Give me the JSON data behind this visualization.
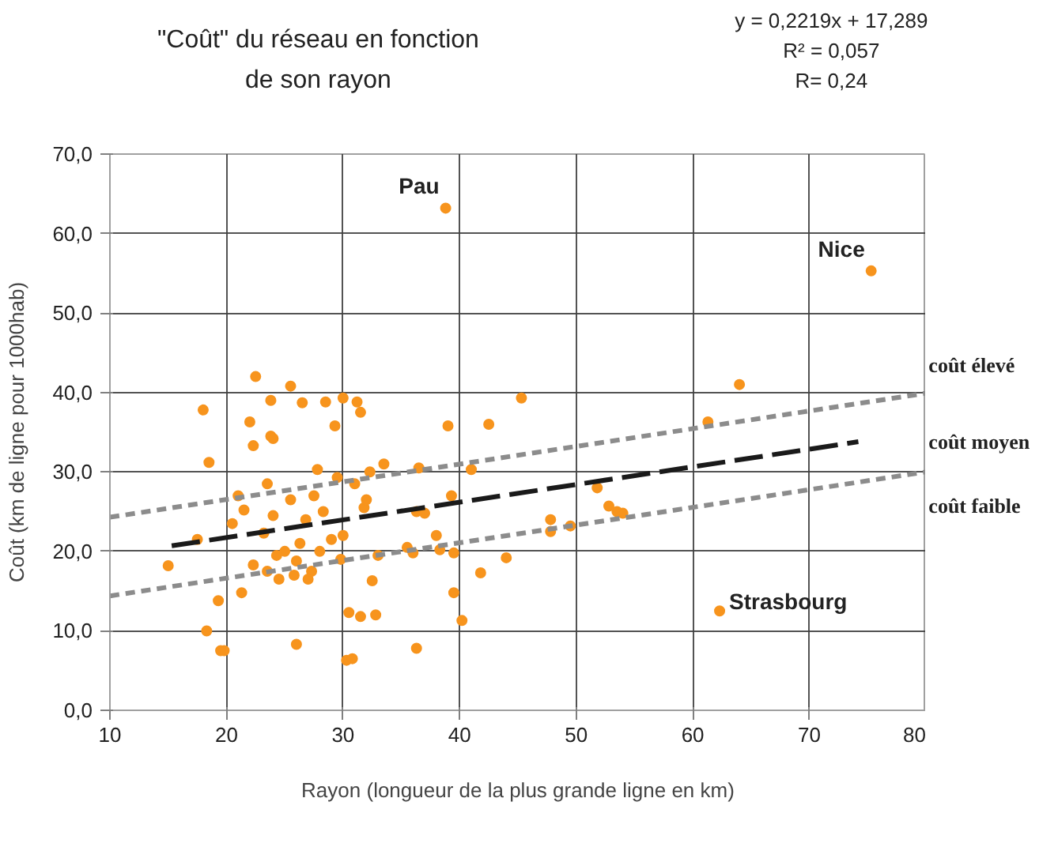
{
  "chart_data": {
    "type": "scatter",
    "title": "\"Coût\" du réseau en fonction\nde son rayon",
    "xlabel": "Rayon (longueur de la plus grande ligne en km)",
    "ylabel": "Coût (km de ligne pour 1000hab)",
    "xlim": [
      10,
      80
    ],
    "xticks": [
      10,
      20,
      30,
      40,
      50,
      60,
      70,
      80
    ],
    "ylim": [
      0,
      70
    ],
    "yticks": [
      {
        "value": 0,
        "label": "0,0"
      },
      {
        "value": 10,
        "label": "10,0"
      },
      {
        "value": 20,
        "label": "20,0"
      },
      {
        "value": 30,
        "label": "30,0"
      },
      {
        "value": 40,
        "label": "40,0"
      },
      {
        "value": 50,
        "label": "50,0"
      },
      {
        "value": 60,
        "label": "60,0"
      },
      {
        "value": 70,
        "label": "70,0"
      }
    ],
    "grid": true,
    "legend": false,
    "series": [
      {
        "type": "scatter",
        "marker": "circle",
        "color": "#f7941d",
        "x": [
          15,
          17.5,
          18,
          18.3,
          18.5,
          19.3,
          19.5,
          19.8,
          20.5,
          21,
          21.3,
          21.5,
          22,
          22.3,
          22.3,
          22.5,
          23.2,
          23.5,
          23.5,
          23.8,
          23.8,
          24,
          24,
          24.3,
          24.5,
          25,
          25.5,
          25.5,
          25.8,
          26,
          26,
          26.3,
          26.5,
          26.8,
          27,
          27.3,
          27.5,
          27.8,
          28,
          28.3,
          28.5,
          29,
          29.3,
          29.5,
          29.8,
          30,
          30,
          30.3,
          30.5,
          30.8,
          31,
          31.2,
          31.5,
          31.5,
          31.8,
          32,
          32.3,
          32.5,
          32.8,
          33,
          33.5,
          35.5,
          36,
          36.3,
          36.5,
          36.3,
          37,
          38,
          38.3,
          38.8,
          39,
          39.3,
          39.5,
          39.5,
          40.2,
          41,
          41.8,
          42.5,
          44,
          45.3,
          47.8,
          47.8,
          49.5,
          51.8,
          52.8,
          53.5,
          54,
          61.3,
          62.3,
          64,
          75.3
        ],
        "values": [
          18.2,
          21.5,
          37.8,
          10,
          31.2,
          13.8,
          7.5,
          7.5,
          23.5,
          27,
          14.8,
          25.2,
          36.3,
          18.3,
          33.3,
          42,
          22.3,
          17.5,
          28.5,
          39,
          34.5,
          24.5,
          34.2,
          19.5,
          16.5,
          20,
          26.5,
          40.8,
          17,
          8.3,
          18.8,
          21,
          38.7,
          24,
          16.5,
          17.5,
          27,
          30.3,
          20,
          25,
          38.8,
          21.5,
          35.8,
          29.3,
          19,
          39.3,
          22,
          6.3,
          12.3,
          6.5,
          28.5,
          38.8,
          37.5,
          11.8,
          25.5,
          26.5,
          30,
          16.3,
          12,
          19.5,
          31,
          20.5,
          19.8,
          25,
          30.5,
          7.8,
          24.8,
          22,
          20.2,
          63.2,
          35.8,
          27,
          14.8,
          19.8,
          11.3,
          30.3,
          17.3,
          36,
          19.2,
          39.3,
          22.5,
          24,
          23.2,
          28,
          25.7,
          25,
          24.8,
          36.3,
          12.5,
          41,
          55.3
        ]
      },
      {
        "type": "line",
        "name": "coût élevé",
        "color": "#8c8c8c",
        "line_style": "dashed",
        "marker": "none",
        "x": [
          10,
          80
        ],
        "values": [
          24.3,
          39.9
        ]
      },
      {
        "type": "line",
        "name": "coût moyen",
        "color": "#1a1a1a",
        "line_style": "dashed",
        "marker": "none",
        "x": [
          15.3,
          74.2
        ],
        "values": [
          20.7,
          33.8
        ]
      },
      {
        "type": "line",
        "name": "coût faible",
        "color": "#8c8c8c",
        "line_style": "dashed",
        "marker": "none",
        "x": [
          10,
          80
        ],
        "values": [
          14.4,
          30
        ]
      }
    ],
    "annotations": [
      "y = 0,2219x + 17,289",
      "R² = 0,057",
      "R= 0,24",
      {
        "text": "Pau",
        "x": 38.8,
        "y": 63.2
      },
      {
        "text": "Nice",
        "x": 75.3,
        "y": 55.3
      },
      {
        "text": "Strasbourg",
        "x": 62.3,
        "y": 12.5
      }
    ]
  }
}
